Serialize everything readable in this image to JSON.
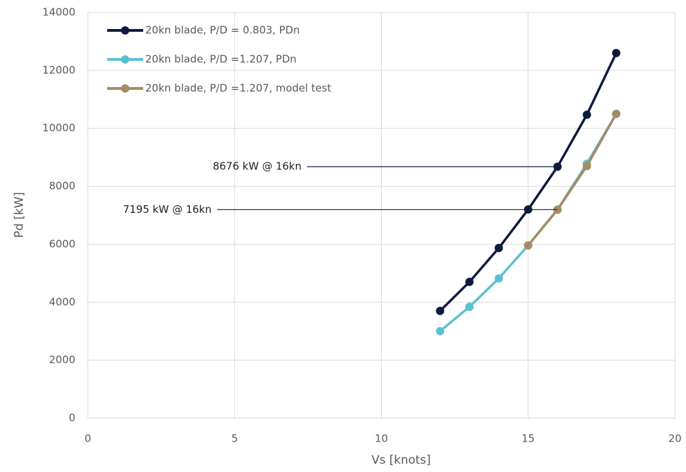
{
  "chart_data": {
    "type": "line",
    "x": [
      12,
      13,
      14,
      15,
      16,
      17,
      18
    ],
    "series": [
      {
        "name": "20kn blade, P/D = 0.803, PDn",
        "color": "#0d1b3e",
        "values": [
          3700,
          4700,
          5870,
          7200,
          8676,
          10470,
          12600
        ]
      },
      {
        "name": "20kn blade, P/D =1.207, PDn",
        "color": "#5bc0d3",
        "values": [
          3000,
          3840,
          4820,
          5960,
          7195,
          8780,
          10500
        ]
      },
      {
        "name": "20kn blade, P/D =1.207, model test",
        "color": "#a68a64",
        "values": [
          null,
          null,
          null,
          5960,
          7195,
          8700,
          10500
        ]
      }
    ],
    "xlabel": "Vs [knots]",
    "ylabel": "Pd [kW]",
    "xlim": [
      0,
      20
    ],
    "xticks": [
      0,
      5,
      10,
      15,
      20
    ],
    "ylim": [
      0,
      14000
    ],
    "yticks": [
      0,
      2000,
      4000,
      6000,
      8000,
      10000,
      12000,
      14000
    ],
    "grid": true,
    "legend": "upper left",
    "annotations": [
      {
        "text": "8676 kW @ 16kn",
        "x": 16,
        "y": 8676
      },
      {
        "text": "7195 kW @ 16kn",
        "x": 16,
        "y": 7195
      }
    ]
  }
}
